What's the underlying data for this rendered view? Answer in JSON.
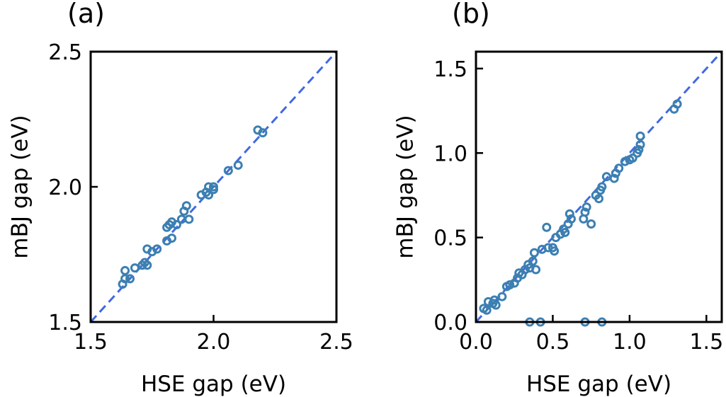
{
  "chart_data": [
    {
      "type": "scatter",
      "panel_label": "(a)",
      "xlabel": "HSE gap (eV)",
      "ylabel": "mBJ gap (eV)",
      "xlim": [
        1.5,
        2.5
      ],
      "ylim": [
        1.5,
        2.5
      ],
      "xticks": [
        1.5,
        2.0,
        2.5
      ],
      "yticks": [
        1.5,
        2.0,
        2.5
      ],
      "xtick_labels": [
        "1.5",
        "2.0",
        "2.5"
      ],
      "ytick_labels": [
        "1.5",
        "2.0",
        "2.5"
      ],
      "reference_line": "y = x",
      "grid": false,
      "marker_color": "#3c7fb1",
      "line_color": "#4169e1",
      "points": [
        [
          1.63,
          1.64
        ],
        [
          1.64,
          1.66
        ],
        [
          1.64,
          1.69
        ],
        [
          1.66,
          1.66
        ],
        [
          1.68,
          1.7
        ],
        [
          1.71,
          1.71
        ],
        [
          1.72,
          1.72
        ],
        [
          1.73,
          1.71
        ],
        [
          1.73,
          1.77
        ],
        [
          1.75,
          1.76
        ],
        [
          1.77,
          1.77
        ],
        [
          1.81,
          1.8
        ],
        [
          1.81,
          1.85
        ],
        [
          1.82,
          1.86
        ],
        [
          1.83,
          1.81
        ],
        [
          1.83,
          1.87
        ],
        [
          1.85,
          1.86
        ],
        [
          1.87,
          1.88
        ],
        [
          1.88,
          1.91
        ],
        [
          1.89,
          1.93
        ],
        [
          1.9,
          1.88
        ],
        [
          1.95,
          1.97
        ],
        [
          1.97,
          1.98
        ],
        [
          1.98,
          1.97
        ],
        [
          1.98,
          2.0
        ],
        [
          2.0,
          1.99
        ],
        [
          2.0,
          2.0
        ],
        [
          2.06,
          2.06
        ],
        [
          2.1,
          2.08
        ],
        [
          2.18,
          2.21
        ],
        [
          2.2,
          2.2
        ]
      ]
    },
    {
      "type": "scatter",
      "panel_label": "(b)",
      "xlabel": "HSE gap (eV)",
      "ylabel": "mBJ gap (eV)",
      "xlim": [
        0.0,
        1.6
      ],
      "ylim": [
        0.0,
        1.6
      ],
      "xticks": [
        0.0,
        0.5,
        1.0,
        1.5
      ],
      "yticks": [
        0.0,
        0.5,
        1.0,
        1.5
      ],
      "xtick_labels": [
        "0.0",
        "0.5",
        "1.0",
        "1.5"
      ],
      "ytick_labels": [
        "0.0",
        "0.5",
        "1.0",
        "1.5"
      ],
      "reference_line": "y = x",
      "grid": false,
      "marker_color": "#3c7fb1",
      "line_color": "#4169e1",
      "points": [
        [
          0.05,
          0.08
        ],
        [
          0.07,
          0.07
        ],
        [
          0.08,
          0.12
        ],
        [
          0.11,
          0.11
        ],
        [
          0.12,
          0.13
        ],
        [
          0.13,
          0.1
        ],
        [
          0.17,
          0.15
        ],
        [
          0.2,
          0.21
        ],
        [
          0.22,
          0.22
        ],
        [
          0.25,
          0.23
        ],
        [
          0.27,
          0.26
        ],
        [
          0.28,
          0.29
        ],
        [
          0.3,
          0.28
        ],
        [
          0.32,
          0.31
        ],
        [
          0.34,
          0.34
        ],
        [
          0.35,
          0.32
        ],
        [
          0.37,
          0.36
        ],
        [
          0.38,
          0.41
        ],
        [
          0.39,
          0.31
        ],
        [
          0.43,
          0.43
        ],
        [
          0.46,
          0.56
        ],
        [
          0.47,
          0.44
        ],
        [
          0.5,
          0.44
        ],
        [
          0.51,
          0.42
        ],
        [
          0.52,
          0.5
        ],
        [
          0.55,
          0.52
        ],
        [
          0.57,
          0.55
        ],
        [
          0.58,
          0.53
        ],
        [
          0.6,
          0.58
        ],
        [
          0.61,
          0.64
        ],
        [
          0.62,
          0.61
        ],
        [
          0.7,
          0.61
        ],
        [
          0.71,
          0.65
        ],
        [
          0.72,
          0.68
        ],
        [
          0.75,
          0.58
        ],
        [
          0.78,
          0.75
        ],
        [
          0.8,
          0.73
        ],
        [
          0.81,
          0.78
        ],
        [
          0.82,
          0.8
        ],
        [
          0.85,
          0.86
        ],
        [
          0.9,
          0.85
        ],
        [
          0.91,
          0.88
        ],
        [
          0.93,
          0.91
        ],
        [
          0.97,
          0.95
        ],
        [
          1.0,
          0.96
        ],
        [
          1.02,
          0.97
        ],
        [
          1.05,
          1.0
        ],
        [
          1.06,
          1.02
        ],
        [
          1.07,
          1.05
        ],
        [
          1.07,
          1.1
        ],
        [
          1.29,
          1.26
        ],
        [
          1.31,
          1.29
        ],
        [
          0.35,
          0.0
        ],
        [
          0.42,
          0.0
        ],
        [
          0.71,
          0.0
        ],
        [
          0.82,
          0.0
        ]
      ]
    }
  ]
}
